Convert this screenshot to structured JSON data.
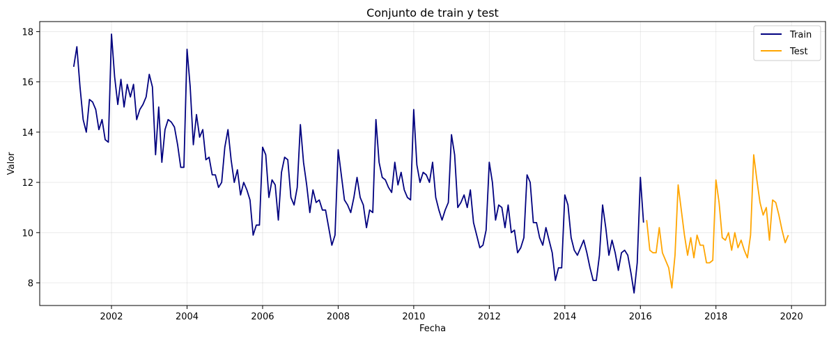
{
  "chart_data": {
    "type": "line",
    "title": "Conjunto de train y test",
    "xlabel": "Fecha",
    "ylabel": "Valor",
    "xlim": [
      2000.1,
      2020.9
    ],
    "ylim": [
      7.1,
      18.4
    ],
    "xticks": [
      2002,
      2004,
      2006,
      2008,
      2010,
      2012,
      2014,
      2016,
      2018,
      2020
    ],
    "xtick_labels": [
      "2002",
      "2004",
      "2006",
      "2008",
      "2010",
      "2012",
      "2014",
      "2016",
      "2018",
      "2020"
    ],
    "yticks": [
      8,
      10,
      12,
      14,
      16,
      18
    ],
    "ytick_labels": [
      "8",
      "10",
      "12",
      "14",
      "16",
      "18"
    ],
    "grid": true,
    "legend_position": "top-right",
    "start_year": 2001,
    "step": 0.08333,
    "series": [
      {
        "name": "Train",
        "color": "#00007f",
        "start_index": 0,
        "values": [
          16.6,
          17.4,
          15.8,
          14.5,
          14.0,
          15.3,
          15.2,
          14.9,
          14.1,
          14.5,
          13.7,
          13.6,
          17.9,
          16.2,
          15.1,
          16.1,
          15.0,
          15.9,
          15.4,
          15.9,
          14.5,
          14.9,
          15.1,
          15.4,
          16.3,
          15.8,
          13.1,
          15.0,
          12.8,
          14.1,
          14.5,
          14.4,
          14.2,
          13.5,
          12.6,
          12.6,
          17.3,
          15.8,
          13.5,
          14.7,
          13.8,
          14.1,
          12.9,
          13.0,
          12.3,
          12.3,
          11.8,
          12.0,
          13.4,
          14.1,
          12.9,
          12.0,
          12.5,
          11.5,
          12.0,
          11.7,
          11.3,
          9.9,
          10.3,
          10.3,
          13.4,
          13.1,
          11.4,
          12.1,
          11.9,
          10.5,
          12.4,
          13.0,
          12.9,
          11.4,
          11.1,
          11.8,
          14.3,
          12.8,
          11.9,
          10.8,
          11.7,
          11.2,
          11.3,
          10.9,
          10.9,
          10.2,
          9.5,
          9.9,
          13.3,
          12.3,
          11.3,
          11.1,
          10.8,
          11.4,
          12.2,
          11.4,
          11.1,
          10.2,
          10.9,
          10.8,
          14.5,
          12.8,
          12.2,
          12.1,
          11.8,
          11.6,
          12.8,
          11.9,
          12.4,
          11.7,
          11.4,
          11.3,
          14.9,
          12.7,
          12.0,
          12.4,
          12.3,
          12.0,
          12.8,
          11.4,
          10.9,
          10.5,
          10.9,
          11.2,
          13.9,
          13.1,
          11.0,
          11.2,
          11.5,
          11.0,
          11.7,
          10.4,
          9.9,
          9.4,
          9.5,
          10.1,
          12.8,
          12.0,
          10.5,
          11.1,
          11.0,
          10.2,
          11.1,
          10.0,
          10.1,
          9.2,
          9.4,
          9.8,
          12.3,
          12.0,
          10.4,
          10.4,
          9.8,
          9.5,
          10.2,
          9.7,
          9.2,
          8.1,
          8.6,
          8.6,
          11.5,
          11.1,
          9.8,
          9.3,
          9.1,
          9.4,
          9.7,
          9.2,
          8.6,
          8.1,
          8.1,
          9.1,
          11.1,
          10.2,
          9.1,
          9.7,
          9.2,
          8.5,
          9.2,
          9.3,
          9.1,
          8.4,
          7.6,
          8.8,
          12.2,
          10.4
        ]
      },
      {
        "name": "Test",
        "color": "#ffa500",
        "start_index": 182,
        "values": [
          10.5,
          9.3,
          9.2,
          9.2,
          10.2,
          9.2,
          8.9,
          8.6,
          7.8,
          9.1,
          11.9,
          10.9,
          9.9,
          9.1,
          9.8,
          9.0,
          9.9,
          9.5,
          9.5,
          8.8,
          8.8,
          8.9,
          12.1,
          11.2,
          9.8,
          9.7,
          10.0,
          9.3,
          10.0,
          9.4,
          9.7,
          9.3,
          9.0,
          9.9,
          13.1,
          12.1,
          11.2,
          10.7,
          11.0,
          9.7,
          11.3,
          11.2,
          10.7,
          10.1,
          9.6,
          9.9
        ]
      }
    ]
  }
}
